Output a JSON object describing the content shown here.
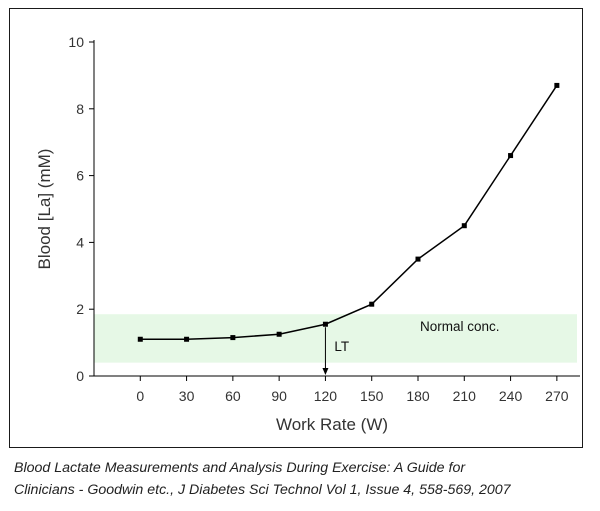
{
  "chart_data": {
    "type": "line",
    "xlabel": "Work Rate (W)",
    "ylabel": "Blood [La] (mM)",
    "x": [
      0,
      30,
      60,
      90,
      120,
      150,
      180,
      210,
      240,
      270
    ],
    "series": [
      {
        "values": [
          1.1,
          1.1,
          1.15,
          1.25,
          1.55,
          2.15,
          3.5,
          4.5,
          6.6,
          8.7
        ]
      }
    ],
    "xticks": [
      "0",
      "30",
      "60",
      "90",
      "120",
      "150",
      "180",
      "210",
      "240",
      "270"
    ],
    "yticks": [
      "0",
      "2",
      "4",
      "6",
      "8",
      "10"
    ],
    "xlim": [
      -30,
      285
    ],
    "ylim": [
      0,
      10
    ],
    "grid": false,
    "normal_band": {
      "label": "Normal conc.",
      "y_from": 0.4,
      "y_to": 1.85,
      "color": "#e6f8e6"
    },
    "threshold": {
      "label": "LT",
      "x": 120
    },
    "line_color": "#000000"
  },
  "caption": {
    "line1": "Blood Lactate Measurements and Analysis During Exercise: A Guide for",
    "line2": "Clinicians - Goodwin etc., J Diabetes Sci Technol Vol 1, Issue 4, 558-569, 2007"
  }
}
